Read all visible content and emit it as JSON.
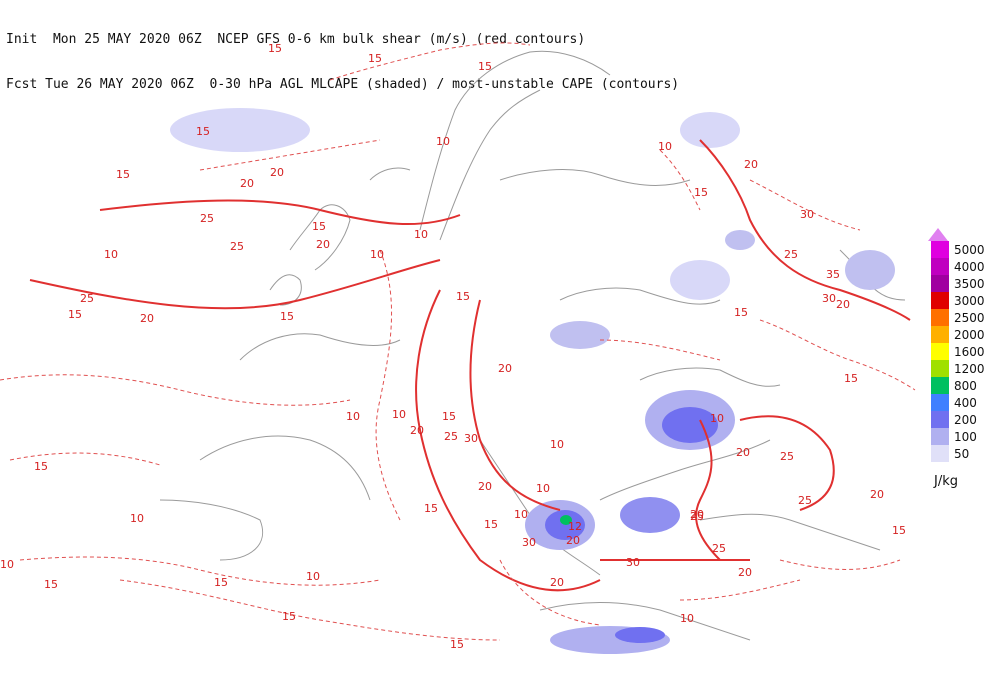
{
  "header": {
    "line1": "Init  Mon 25 MAY 2020 06Z  NCEP GFS 0-6 km bulk shear (m/s) (red contours)",
    "line2": "Fcst Tue 26 MAY 2020 06Z  0-30 hPa AGL MLCAPE (shaded) / most-unstable CAPE (contours)"
  },
  "legend": {
    "units": "J/kg",
    "entries": [
      {
        "label": "5000",
        "color": "#e000e0"
      },
      {
        "label": "4000",
        "color": "#c000c0"
      },
      {
        "label": "3500",
        "color": "#a000a0"
      },
      {
        "label": "3000",
        "color": "#e00000"
      },
      {
        "label": "2500",
        "color": "#ff7000"
      },
      {
        "label": "2000",
        "color": "#ffb000"
      },
      {
        "label": "1600",
        "color": "#ffff00"
      },
      {
        "label": "1200",
        "color": "#a0e000"
      },
      {
        "label": "800",
        "color": "#00c060"
      },
      {
        "label": "400",
        "color": "#4080ff"
      },
      {
        "label": "200",
        "color": "#7070f0"
      },
      {
        "label": "100",
        "color": "#b0b0f0"
      },
      {
        "label": "50",
        "color": "#e0e0f8"
      }
    ]
  },
  "contour_labels": [
    "15",
    "15",
    "15",
    "15",
    "10",
    "15",
    "20",
    "25",
    "25",
    "10",
    "25",
    "15",
    "20",
    "15",
    "10",
    "15",
    "20",
    "10",
    "15",
    "10",
    "20",
    "25",
    "30",
    "35",
    "30",
    "20",
    "10",
    "15",
    "20",
    "15",
    "10",
    "15",
    "20",
    "25",
    "30",
    "10",
    "10",
    "15",
    "20",
    "25",
    "15",
    "20",
    "10",
    "10",
    "15",
    "25",
    "20",
    "30",
    "20",
    "15",
    "10",
    "15",
    "12",
    "20",
    "25",
    "25",
    "20",
    "30",
    "15",
    "10",
    "15",
    "10",
    "15",
    "20",
    "10",
    "15",
    "20"
  ]
}
